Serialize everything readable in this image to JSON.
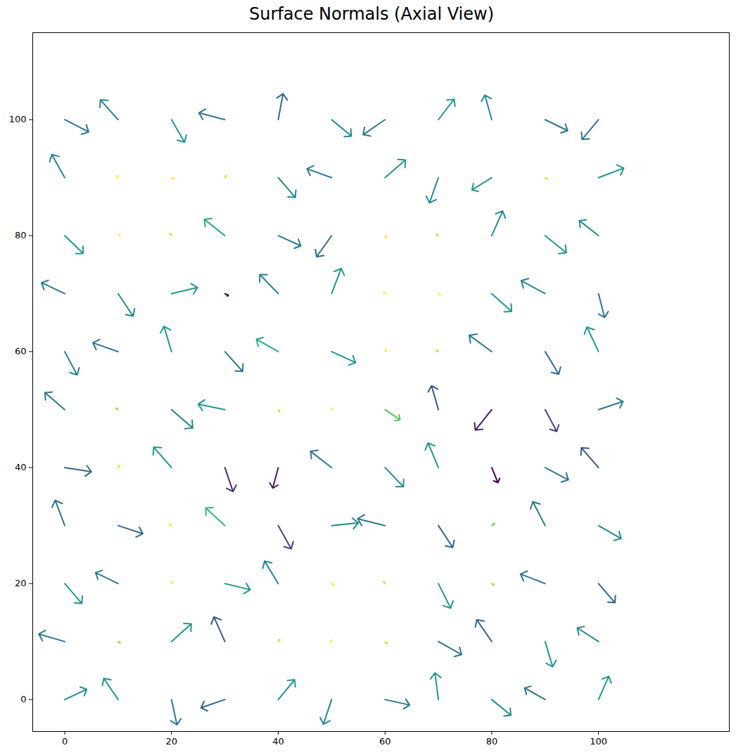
{
  "chart_data": {
    "type": "quiver",
    "title": "Surface Normals (Axial View)",
    "color": "viridis",
    "x": [
      0,
      10,
      20,
      30,
      40,
      50,
      60,
      70,
      80,
      90,
      100
    ],
    "y": [
      0,
      10,
      20,
      30,
      40,
      50,
      60,
      70,
      80,
      90,
      100
    ],
    "u": [
      [
        3.2,
        -2.1,
        0.8,
        -3.5,
        2.4,
        -1.2,
        3.6,
        -0.5,
        2.8,
        -3.0,
        1.5
      ],
      [
        -3.8,
        0.3,
        2.9,
        -1.6,
        0.2,
        -0.1,
        0.3,
        3.4,
        -2.2,
        1.1,
        -3.1
      ],
      [
        2.5,
        -3.3,
        0.2,
        3.7,
        -2.0,
        0.3,
        -0.2,
        1.8,
        0.3,
        -3.6,
        2.4
      ],
      [
        -1.4,
        3.6,
        -0.3,
        -2.8,
        1.9,
        3.9,
        -4.0,
        2.1,
        0.4,
        -1.8,
        3.3
      ],
      [
        3.9,
        0.2,
        -2.6,
        1.2,
        -0.8,
        -3.1,
        2.7,
        -1.5,
        0.9,
        3.4,
        -2.5
      ],
      [
        -2.9,
        -0.3,
        3.1,
        -3.9,
        0.2,
        0.1,
        2.2,
        -1.0,
        -2.4,
        1.7,
        3.6
      ],
      [
        1.8,
        -3.7,
        -1.1,
        2.6,
        -3.2,
        3.5,
        0.2,
        -0.3,
        -3.3,
        2.0,
        -1.7
      ],
      [
        -3.4,
        2.2,
        3.8,
        0.5,
        -2.7,
        1.4,
        -0.2,
        0.3,
        2.9,
        -3.5,
        0.9
      ],
      [
        2.7,
        0.3,
        -0.2,
        -3.0,
        3.3,
        -2.2,
        0.2,
        -0.3,
        1.6,
        3.1,
        -2.8
      ],
      [
        -1.9,
        -0.2,
        0.3,
        0.2,
        2.5,
        -3.6,
        3.0,
        -1.3,
        -2.9,
        0.3,
        3.7
      ],
      [
        3.5,
        -2.6,
        1.9,
        -3.8,
        0.7,
        2.9,
        -3.2,
        2.3,
        -1.0,
        3.3,
        -2.4
      ]
    ],
    "v": [
      [
        1.5,
        3.1,
        -3.7,
        -1.2,
        2.9,
        -3.6,
        -0.8,
        3.9,
        -2.3,
        1.7,
        3.4
      ],
      [
        1.1,
        -0.2,
        2.6,
        3.6,
        0.3,
        0.2,
        -0.3,
        -1.9,
        3.2,
        -3.7,
        2.0
      ],
      [
        -2.9,
        1.6,
        0.3,
        -0.9,
        3.3,
        -0.2,
        0.3,
        -3.6,
        -0.2,
        1.4,
        -2.8
      ],
      [
        3.7,
        -1.2,
        0.2,
        2.6,
        -3.4,
        0.4,
        1.0,
        -3.2,
        0.3,
        3.5,
        -1.9
      ],
      [
        -0.6,
        0.3,
        3.0,
        -3.5,
        -3.0,
        2.4,
        -2.8,
        3.6,
        -2.2,
        -1.8,
        2.9
      ],
      [
        2.5,
        0.2,
        -2.7,
        0.8,
        -0.3,
        0.2,
        -1.5,
        3.5,
        -3.0,
        -3.2,
        1.2
      ],
      [
        -3.4,
        1.3,
        3.7,
        -2.9,
        1.8,
        -1.6,
        0.3,
        0.2,
        2.4,
        -3.3,
        3.6
      ],
      [
        1.6,
        -3.3,
        0.9,
        -0.3,
        2.8,
        3.7,
        0.2,
        -0.2,
        -2.6,
        1.9,
        -3.5
      ],
      [
        -2.6,
        0.2,
        0.3,
        2.4,
        -1.5,
        -3.1,
        -0.3,
        0.2,
        3.6,
        -2.5,
        2.2
      ],
      [
        3.4,
        0.3,
        -0.2,
        0.3,
        -2.9,
        1.3,
        2.6,
        -3.7,
        -1.8,
        -0.2,
        1.4
      ],
      [
        -1.8,
        2.9,
        -3.3,
        1.0,
        3.8,
        -2.4,
        -2.2,
        3.0,
        3.6,
        -1.6,
        -2.9
      ]
    ],
    "nz": [
      [
        0.55,
        0.6,
        0.5,
        0.45,
        0.6,
        0.55,
        0.5,
        0.6,
        0.55,
        0.5,
        0.6
      ],
      [
        0.5,
        0.85,
        0.6,
        0.4,
        0.9,
        0.95,
        0.9,
        0.5,
        0.45,
        0.6,
        0.55
      ],
      [
        0.6,
        0.5,
        0.95,
        0.6,
        0.55,
        0.95,
        0.9,
        0.6,
        0.85,
        0.5,
        0.45
      ],
      [
        0.5,
        0.45,
        0.95,
        0.7,
        0.35,
        0.55,
        0.5,
        0.45,
        0.8,
        0.5,
        0.55
      ],
      [
        0.45,
        0.9,
        0.6,
        0.3,
        0.25,
        0.5,
        0.55,
        0.6,
        0.2,
        0.5,
        0.4
      ],
      [
        0.5,
        0.85,
        0.55,
        0.6,
        0.9,
        0.95,
        0.75,
        0.4,
        0.25,
        0.35,
        0.5
      ],
      [
        0.55,
        0.5,
        0.6,
        0.5,
        0.65,
        0.6,
        0.95,
        0.9,
        0.5,
        0.45,
        0.6
      ],
      [
        0.5,
        0.55,
        0.6,
        0.2,
        0.55,
        0.6,
        0.95,
        0.95,
        0.6,
        0.55,
        0.5
      ],
      [
        0.6,
        0.95,
        0.9,
        0.65,
        0.5,
        0.45,
        0.95,
        0.9,
        0.55,
        0.6,
        0.55
      ],
      [
        0.55,
        0.95,
        0.95,
        0.9,
        0.55,
        0.5,
        0.6,
        0.55,
        0.6,
        0.9,
        0.6
      ],
      [
        0.5,
        0.55,
        0.6,
        0.5,
        0.45,
        0.55,
        0.5,
        0.6,
        0.55,
        0.5,
        0.5
      ]
    ],
    "xlim": [
      -6,
      124.5
    ],
    "ylim": [
      -5.5,
      115
    ],
    "xticks": [
      0,
      20,
      40,
      60,
      80,
      100
    ],
    "yticks": [
      0,
      20,
      40,
      60,
      80,
      100
    ]
  }
}
